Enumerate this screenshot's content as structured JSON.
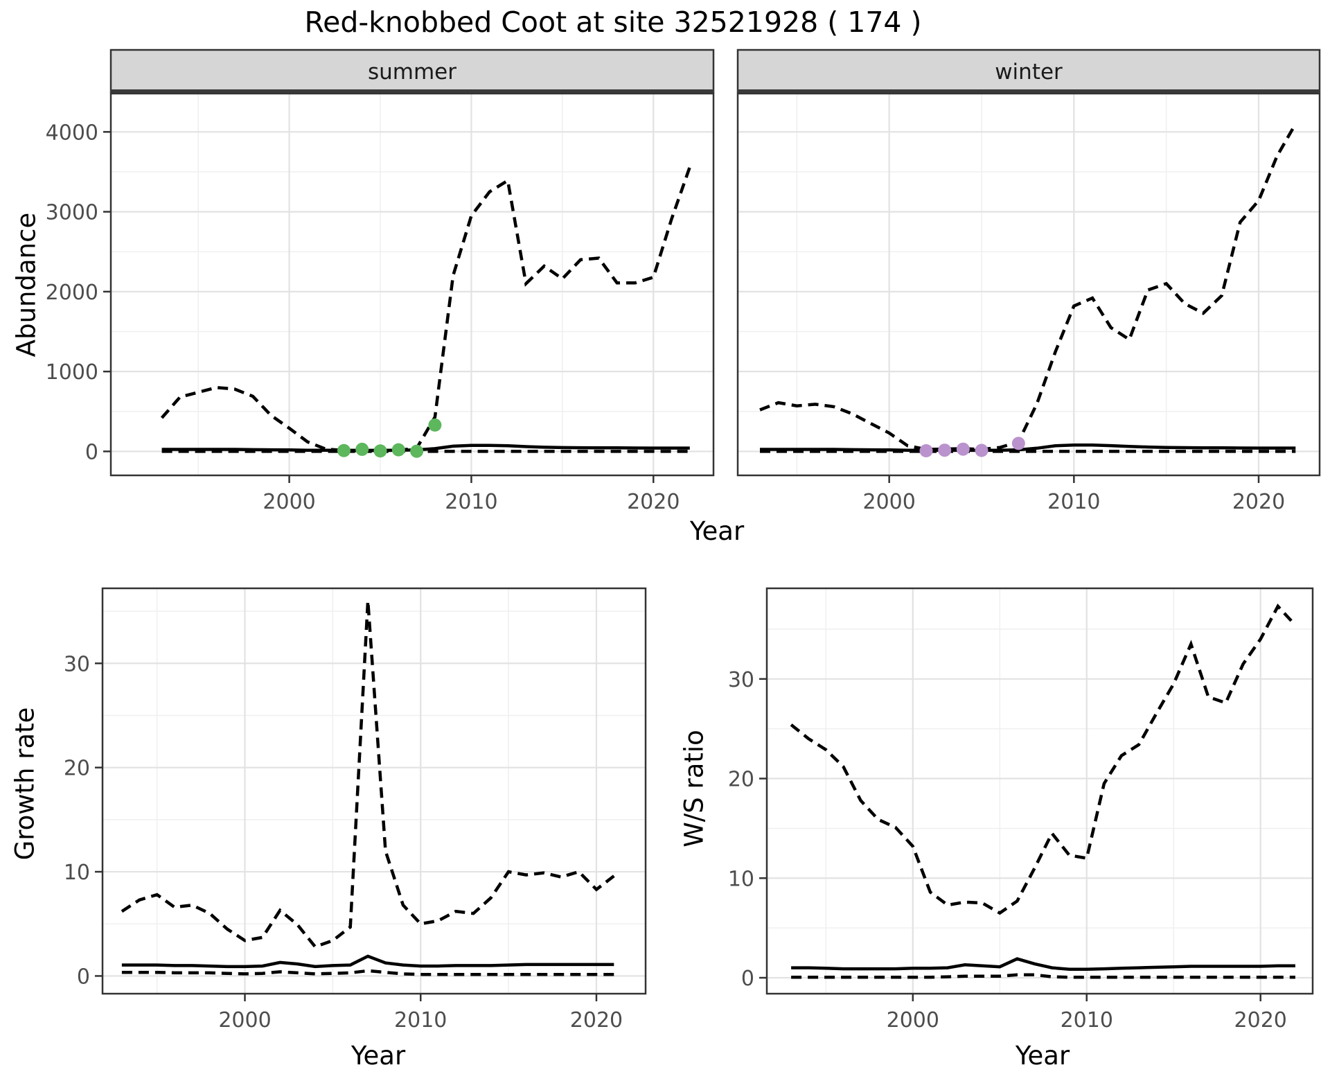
{
  "title": "Red-knobbed Coot at site 32521928 ( 174 )",
  "axes": {
    "year_label": "Year",
    "abundance_label": "Abundance",
    "year_ticks": [
      2000,
      2010,
      2020
    ],
    "abundance_ticks": [
      0,
      1000,
      2000,
      3000,
      4000
    ],
    "rate_ticks": [
      0,
      10,
      20,
      30
    ]
  },
  "colors": {
    "summer_points": "#5db75c",
    "winter_points": "#ba92cd",
    "line": "#000000",
    "strip_bg": "#d6d6d6",
    "strip_border": "#333333",
    "panel_border": "#333333",
    "grid_major": "#e2e2e2",
    "grid_minor": "#f0f0f0",
    "tick_text": "#4d4d4d"
  },
  "chart_data": [
    {
      "id": "abundance-summer",
      "type": "line",
      "facet": "summer",
      "xlabel": "Year",
      "ylabel": "Abundance",
      "x": [
        1993,
        1994,
        1995,
        1996,
        1997,
        1998,
        1999,
        2000,
        2001,
        2002,
        2003,
        2004,
        2005,
        2006,
        2007,
        2008,
        2009,
        2010,
        2011,
        2012,
        2013,
        2014,
        2015,
        2016,
        2017,
        2018,
        2019,
        2020,
        2021,
        2022
      ],
      "xticks": [
        2000,
        2010,
        2020
      ],
      "yticks": [
        0,
        1000,
        2000,
        3000,
        4000
      ],
      "ylim": [
        0,
        4100
      ],
      "grid": true,
      "legend": "none",
      "series": [
        {
          "name": "upper-ci",
          "style": "dashed",
          "values": [
            420,
            680,
            740,
            800,
            780,
            690,
            450,
            290,
            120,
            30,
            12,
            10,
            10,
            15,
            40,
            430,
            2200,
            2950,
            3250,
            3390,
            2100,
            2320,
            2160,
            2400,
            2420,
            2110,
            2110,
            2180,
            2910,
            3560
          ]
        },
        {
          "name": "median",
          "style": "solid",
          "values": [
            25,
            25,
            25,
            25,
            25,
            22,
            20,
            18,
            15,
            14,
            13,
            13,
            13,
            15,
            18,
            35,
            65,
            75,
            75,
            70,
            60,
            52,
            48,
            46,
            45,
            44,
            43,
            42,
            42,
            42
          ]
        },
        {
          "name": "lower-ci",
          "style": "dashed",
          "values": [
            0,
            0,
            0,
            0,
            0,
            0,
            0,
            0,
            0,
            0,
            0,
            0,
            0,
            0,
            0,
            0,
            0,
            0,
            0,
            0,
            0,
            0,
            0,
            0,
            0,
            0,
            0,
            0,
            0,
            0
          ]
        }
      ],
      "points": {
        "name": "observed-counts",
        "color": "#5db75c",
        "x": [
          2003,
          2004,
          2005,
          2006,
          2007,
          2008
        ],
        "y": [
          10,
          26,
          6,
          20,
          2,
          330
        ]
      }
    },
    {
      "id": "abundance-winter",
      "type": "line",
      "facet": "winter",
      "xlabel": "Year",
      "ylabel": "Abundance",
      "x": [
        1993,
        1994,
        1995,
        1996,
        1997,
        1998,
        1999,
        2000,
        2001,
        2002,
        2003,
        2004,
        2005,
        2006,
        2007,
        2008,
        2009,
        2010,
        2011,
        2012,
        2013,
        2014,
        2015,
        2016,
        2017,
        2018,
        2019,
        2020,
        2021,
        2022
      ],
      "xticks": [
        2000,
        2010,
        2020
      ],
      "yticks": [
        0,
        1000,
        2000,
        3000,
        4000
      ],
      "ylim": [
        0,
        4100
      ],
      "grid": true,
      "legend": "none",
      "series": [
        {
          "name": "upper-ci",
          "style": "dashed",
          "values": [
            520,
            610,
            570,
            590,
            560,
            470,
            350,
            230,
            70,
            25,
            30,
            35,
            25,
            50,
            120,
            600,
            1250,
            1820,
            1920,
            1550,
            1400,
            2020,
            2100,
            1850,
            1730,
            1950,
            2870,
            3140,
            3700,
            4100
          ]
        },
        {
          "name": "median",
          "style": "solid",
          "values": [
            25,
            25,
            25,
            25,
            25,
            22,
            20,
            18,
            15,
            13,
            13,
            13,
            13,
            15,
            20,
            40,
            70,
            80,
            80,
            72,
            62,
            55,
            50,
            47,
            45,
            44,
            43,
            42,
            42,
            42
          ]
        },
        {
          "name": "lower-ci",
          "style": "dashed",
          "values": [
            0,
            0,
            0,
            0,
            0,
            0,
            0,
            0,
            0,
            0,
            0,
            0,
            0,
            0,
            0,
            0,
            0,
            0,
            0,
            0,
            0,
            0,
            0,
            0,
            0,
            0,
            0,
            0,
            0,
            0
          ]
        }
      ],
      "points": {
        "name": "observed-counts",
        "color": "#ba92cd",
        "x": [
          2002,
          2003,
          2004,
          2005,
          2007
        ],
        "y": [
          8,
          15,
          28,
          12,
          100
        ]
      }
    },
    {
      "id": "growth-rate",
      "type": "line",
      "facet": null,
      "xlabel": "Year",
      "ylabel": "Growth rate",
      "x": [
        1993,
        1994,
        1995,
        1996,
        1997,
        1998,
        1999,
        2000,
        2001,
        2002,
        2003,
        2004,
        2005,
        2006,
        2007,
        2008,
        2009,
        2010,
        2011,
        2012,
        2013,
        2014,
        2015,
        2016,
        2017,
        2018,
        2019,
        2020,
        2021
      ],
      "xticks": [
        2000,
        2010,
        2020
      ],
      "yticks": [
        0,
        10,
        20,
        30
      ],
      "ylim": [
        0,
        36
      ],
      "grid": true,
      "legend": "none",
      "series": [
        {
          "name": "upper-ci",
          "style": "dashed",
          "values": [
            6.2,
            7.3,
            7.8,
            6.6,
            6.8,
            6.0,
            4.5,
            3.4,
            3.7,
            6.3,
            4.9,
            2.8,
            3.4,
            4.7,
            36.0,
            12.0,
            6.8,
            5.0,
            5.3,
            6.2,
            6.0,
            7.5,
            10.0,
            9.7,
            9.9,
            9.5,
            10.0,
            8.3,
            9.6
          ]
        },
        {
          "name": "median",
          "style": "solid",
          "values": [
            1.05,
            1.05,
            1.05,
            1.0,
            1.0,
            0.95,
            0.9,
            0.9,
            0.95,
            1.3,
            1.15,
            0.9,
            1.0,
            1.05,
            1.9,
            1.25,
            1.05,
            0.95,
            0.95,
            1.0,
            1.0,
            1.0,
            1.05,
            1.1,
            1.1,
            1.1,
            1.1,
            1.1,
            1.1
          ]
        },
        {
          "name": "lower-ci",
          "style": "dashed",
          "values": [
            0.35,
            0.35,
            0.35,
            0.3,
            0.3,
            0.3,
            0.25,
            0.2,
            0.25,
            0.4,
            0.3,
            0.2,
            0.25,
            0.3,
            0.5,
            0.35,
            0.2,
            0.15,
            0.15,
            0.15,
            0.15,
            0.15,
            0.15,
            0.15,
            0.15,
            0.15,
            0.15,
            0.15,
            0.15
          ]
        }
      ],
      "points": null
    },
    {
      "id": "ws-ratio",
      "type": "line",
      "facet": null,
      "xlabel": "Year",
      "ylabel": "W/S ratio",
      "x": [
        1993,
        1994,
        1995,
        1996,
        1997,
        1998,
        1999,
        2000,
        2001,
        2002,
        2003,
        2004,
        2005,
        2006,
        2007,
        2008,
        2009,
        2010,
        2011,
        2012,
        2013,
        2014,
        2015,
        2016,
        2017,
        2018,
        2019,
        2020,
        2021,
        2022
      ],
      "xticks": [
        2000,
        2010,
        2020
      ],
      "yticks": [
        0,
        10,
        20,
        30
      ],
      "ylim": [
        0,
        37.5
      ],
      "grid": true,
      "legend": "none",
      "series": [
        {
          "name": "upper-ci",
          "style": "dashed",
          "values": [
            25.4,
            24.0,
            22.9,
            21.2,
            17.8,
            15.9,
            15.1,
            13.2,
            8.6,
            7.3,
            7.6,
            7.5,
            6.5,
            7.7,
            11.0,
            14.5,
            12.3,
            12.0,
            19.5,
            22.3,
            23.4,
            26.5,
            29.5,
            33.5,
            28.2,
            27.6,
            31.5,
            34.0,
            37.3,
            35.4
          ]
        },
        {
          "name": "median",
          "style": "solid",
          "values": [
            1.0,
            1.0,
            0.95,
            0.9,
            0.9,
            0.9,
            0.9,
            0.95,
            0.95,
            1.0,
            1.3,
            1.2,
            1.1,
            1.9,
            1.4,
            1.0,
            0.85,
            0.85,
            0.9,
            0.95,
            1.0,
            1.05,
            1.1,
            1.15,
            1.15,
            1.15,
            1.15,
            1.15,
            1.2,
            1.2
          ]
        },
        {
          "name": "lower-ci",
          "style": "dashed",
          "values": [
            0.05,
            0.05,
            0.05,
            0.05,
            0.05,
            0.05,
            0.05,
            0.05,
            0.05,
            0.1,
            0.15,
            0.15,
            0.15,
            0.3,
            0.3,
            0.1,
            0.05,
            0.05,
            0.05,
            0.05,
            0.05,
            0.05,
            0.05,
            0.05,
            0.05,
            0.05,
            0.05,
            0.05,
            0.05,
            0.05
          ]
        }
      ],
      "points": null
    }
  ]
}
